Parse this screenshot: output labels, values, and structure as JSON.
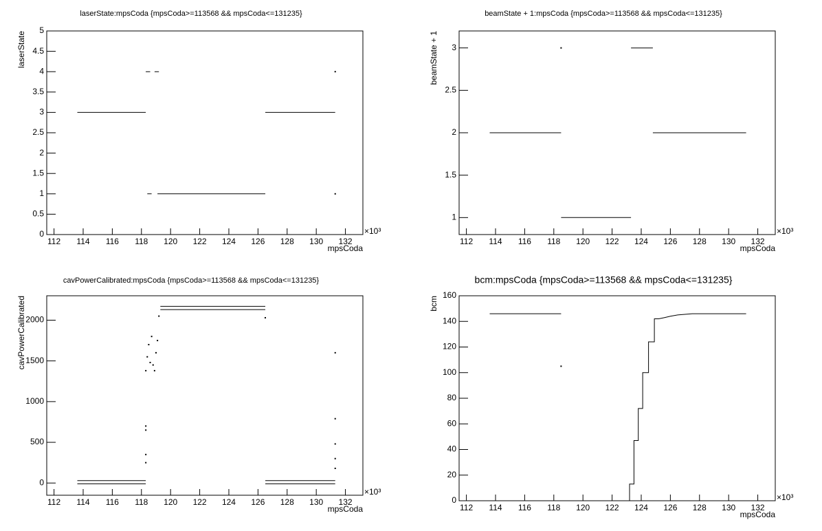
{
  "chart_data": [
    {
      "type": "line",
      "title": "laserState:mpsCoda {mpsCoda>=113568 && mpsCoda<=131235}",
      "xlabel": "mpsCoda",
      "ylabel": "laserState",
      "xunit": "×10³",
      "xlim": [
        111.5,
        133.2
      ],
      "ylim": [
        0,
        5
      ],
      "xticks": [
        112,
        114,
        116,
        118,
        120,
        122,
        124,
        126,
        128,
        130,
        132
      ],
      "yticks": [
        0,
        0.5,
        1,
        1.5,
        2,
        2.5,
        3,
        3.5,
        4,
        4.5,
        5
      ],
      "series": [
        {
          "color": "#000000",
          "marker": "none",
          "x": [
            113.6,
            118.3,
            null,
            118.3,
            118.6,
            null,
            118.9,
            119.2,
            null,
            118.4,
            118.7,
            null,
            119.1,
            126.5,
            null,
            126.5,
            131.3
          ],
          "values": [
            3,
            3,
            null,
            4,
            4,
            null,
            4,
            4,
            null,
            1,
            1,
            null,
            1,
            1,
            null,
            3,
            3
          ]
        },
        {
          "color": "#000000",
          "marker": "dot",
          "x": [
            131.3,
            131.3
          ],
          "values": [
            4,
            1
          ]
        }
      ]
    },
    {
      "type": "line",
      "title": "beamState + 1:mpsCoda {mpsCoda>=113568 && mpsCoda<=131235}",
      "xlabel": "mpsCoda",
      "ylabel": "beamState + 1",
      "xunit": "×10³",
      "xlim": [
        111.5,
        133.2
      ],
      "ylim": [
        0.8,
        3.2
      ],
      "xticks": [
        112,
        114,
        116,
        118,
        120,
        122,
        124,
        126,
        128,
        130,
        132
      ],
      "yticks": [
        1,
        1.5,
        2,
        2.5,
        3
      ],
      "series": [
        {
          "color": "#000000",
          "marker": "none",
          "x": [
            113.6,
            118.5,
            null,
            118.5,
            123.3,
            null,
            123.3,
            124.8,
            null,
            124.8,
            131.2
          ],
          "values": [
            2,
            2,
            null,
            1,
            1,
            null,
            3,
            3,
            null,
            2,
            2
          ]
        },
        {
          "color": "#000000",
          "marker": "dot",
          "x": [
            118.5
          ],
          "values": [
            3
          ]
        }
      ]
    },
    {
      "type": "line",
      "title": "cavPowerCalibrated:mpsCoda {mpsCoda>=113568 && mpsCoda<=131235}",
      "xlabel": "mpsCoda",
      "ylabel": "cavPowerCalibrated",
      "xunit": "×10³",
      "xlim": [
        111.5,
        133.2
      ],
      "ylim": [
        -150,
        2300
      ],
      "xticks": [
        112,
        114,
        116,
        118,
        120,
        122,
        124,
        126,
        128,
        130,
        132
      ],
      "yticks": [
        0,
        500,
        1000,
        1500,
        2000
      ],
      "series": [
        {
          "color": "#000000",
          "marker": "none",
          "x": [
            113.6,
            118.3,
            null,
            126.5,
            131.3,
            null,
            113.6,
            118.3,
            null,
            126.5,
            131.3,
            null,
            119.3,
            126.5,
            null,
            119.3,
            126.5
          ],
          "values": [
            30,
            30,
            null,
            30,
            30,
            null,
            -10,
            -10,
            null,
            -10,
            -10,
            null,
            2170,
            2170,
            null,
            2130,
            2130
          ]
        },
        {
          "color": "#000000",
          "marker": "dot",
          "x": [
            118.3,
            118.3,
            118.3,
            118.3,
            118.3,
            118.4,
            118.5,
            118.6,
            118.7,
            118.8,
            118.9,
            119.0,
            119.1,
            119.2,
            126.5,
            131.3,
            131.3,
            131.3,
            131.3,
            131.3
          ],
          "values": [
            700,
            650,
            350,
            250,
            1380,
            1550,
            1700,
            1480,
            1800,
            1450,
            1380,
            1600,
            1750,
            2050,
            2030,
            1600,
            790,
            480,
            300,
            180
          ]
        }
      ]
    },
    {
      "type": "line",
      "title": "bcm:mpsCoda {mpsCoda>=113568 && mpsCoda<=131235}",
      "xlabel": "mpsCoda",
      "ylabel": "bcm",
      "xunit": "×10³",
      "xlim": [
        111.5,
        133.2
      ],
      "ylim": [
        0,
        160
      ],
      "xticks": [
        112,
        114,
        116,
        118,
        120,
        122,
        124,
        126,
        128,
        130,
        132
      ],
      "yticks": [
        0,
        20,
        40,
        60,
        80,
        100,
        120,
        140,
        160
      ],
      "series": [
        {
          "color": "#000000",
          "marker": "none",
          "x": [
            113.6,
            118.5,
            null,
            123.2,
            123.2,
            123.5,
            123.5,
            123.8,
            123.8,
            124.1,
            124.1,
            124.5,
            124.5,
            124.9,
            124.9,
            125.2,
            125.2,
            125.6,
            126.0,
            126.5,
            127.0,
            127.5,
            131.2
          ],
          "values": [
            146,
            146,
            null,
            0,
            13,
            13,
            47,
            47,
            72,
            72,
            100,
            100,
            124,
            124,
            142,
            142,
            142,
            143,
            144,
            145,
            145.5,
            146,
            146
          ]
        },
        {
          "color": "#000000",
          "marker": "dot",
          "x": [
            118.5
          ],
          "values": [
            105
          ]
        }
      ]
    }
  ]
}
